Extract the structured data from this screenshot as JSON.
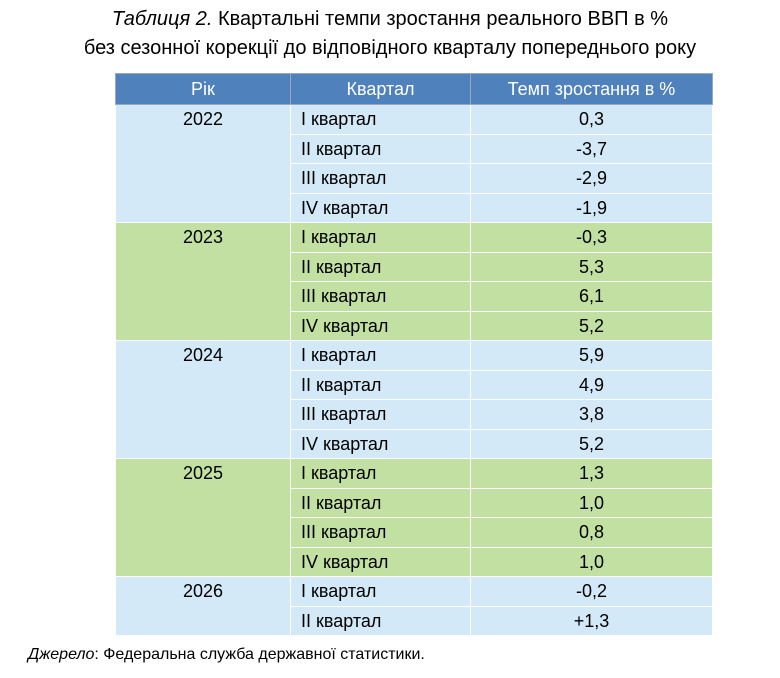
{
  "caption": {
    "number": "Таблиця 2.",
    "line1": "Квартальні темпи зростання реального ВВП в %",
    "line2": "без сезонної корекції до відповідного кварталу попереднього року"
  },
  "table": {
    "headers": [
      "Рік",
      "Квартал",
      "Темп зростання в %"
    ],
    "years": [
      {
        "year": "2022",
        "color": "#d4e9f7",
        "rows": [
          {
            "quarter": "І квартал",
            "value": "0,3"
          },
          {
            "quarter": "ІІ квартал",
            "value": "-3,7"
          },
          {
            "quarter": "ІІІ квартал",
            "value": "-2,9"
          },
          {
            "quarter": "IV квартал",
            "value": "-1,9"
          }
        ]
      },
      {
        "year": "2023",
        "color": "#c3e0a3",
        "rows": [
          {
            "quarter": "І квартал",
            "value": "-0,3"
          },
          {
            "quarter": "ІІ квартал",
            "value": "5,3"
          },
          {
            "quarter": "ІІІ квартал",
            "value": "6,1"
          },
          {
            "quarter": "IV квартал",
            "value": "5,2"
          }
        ]
      },
      {
        "year": "2024",
        "color": "#d4e9f7",
        "rows": [
          {
            "quarter": "І квартал",
            "value": "5,9"
          },
          {
            "quarter": "ІІ квартал",
            "value": "4,9"
          },
          {
            "quarter": "ІІІ квартал",
            "value": "3,8"
          },
          {
            "quarter": "IV квартал",
            "value": "5,2"
          }
        ]
      },
      {
        "year": "2025",
        "color": "#c3e0a3",
        "rows": [
          {
            "quarter": "І квартал",
            "value": "1,3"
          },
          {
            "quarter": "ІІ квартал",
            "value": "1,0"
          },
          {
            "quarter": "ІІІ квартал",
            "value": "0,8"
          },
          {
            "quarter": "IV квартал",
            "value": "1,0"
          }
        ]
      },
      {
        "year": "2026",
        "color": "#d4e9f7",
        "rows": [
          {
            "quarter": "І квартал",
            "value": "-0,2"
          },
          {
            "quarter": "ІІ квартал",
            "value": "+1,3"
          }
        ]
      }
    ]
  },
  "source": {
    "label": "Джерело",
    "text": ": Федеральна служба державної статистики."
  },
  "colors": {
    "header_bg": "#4f81bd",
    "header_text": "#ffffff",
    "blue_band": "#d4e9f7",
    "green_band": "#c3e0a3"
  }
}
